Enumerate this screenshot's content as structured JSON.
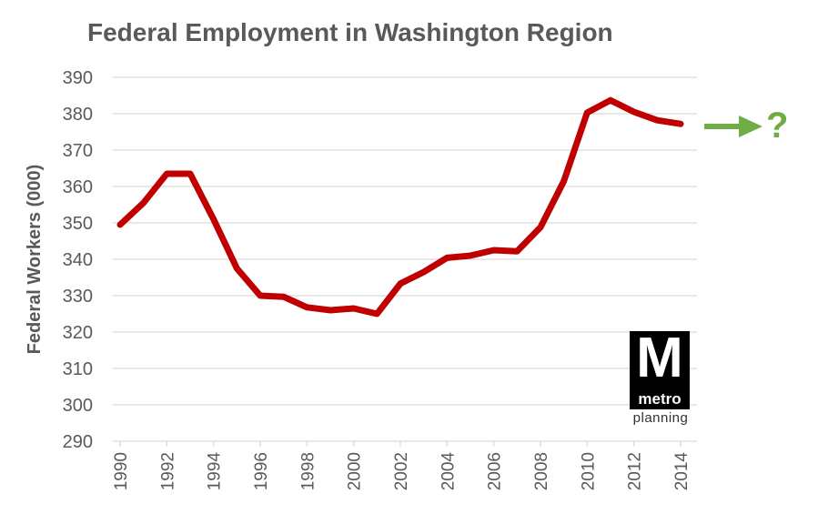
{
  "chart_data": {
    "type": "line",
    "title": "Federal Employment in Washington Region",
    "xlabel": "",
    "ylabel": "Federal Workers (000)",
    "ylim": [
      290,
      390
    ],
    "yticks": [
      290,
      300,
      310,
      320,
      330,
      340,
      350,
      360,
      370,
      380,
      390
    ],
    "xticks": [
      "1990",
      "1992",
      "1994",
      "1996",
      "1998",
      "2000",
      "2002",
      "2004",
      "2006",
      "2008",
      "2010",
      "2012",
      "2014"
    ],
    "grid": true,
    "series": [
      {
        "color": "#c00000",
        "x": [
          1990,
          1991,
          1992,
          1993,
          1994,
          1995,
          1996,
          1997,
          1998,
          1999,
          2000,
          2001,
          2002,
          2003,
          2004,
          2005,
          2006,
          2007,
          2008,
          2009,
          2010,
          2011,
          2012,
          2013,
          2014
        ],
        "values": [
          349.5,
          355.5,
          363.5,
          363.5,
          351,
          337.5,
          330,
          329.7,
          326.8,
          326,
          326.5,
          325,
          333.3,
          336.5,
          340.4,
          341,
          342.5,
          342.2,
          348.8,
          361.5,
          380.3,
          383.7,
          380.5,
          378.2,
          377.2
        ]
      }
    ],
    "annotation": {
      "text": "?",
      "color": "#70ad47"
    }
  },
  "logo": {
    "letter": "M",
    "word": "metro",
    "subtitle": "planning"
  }
}
